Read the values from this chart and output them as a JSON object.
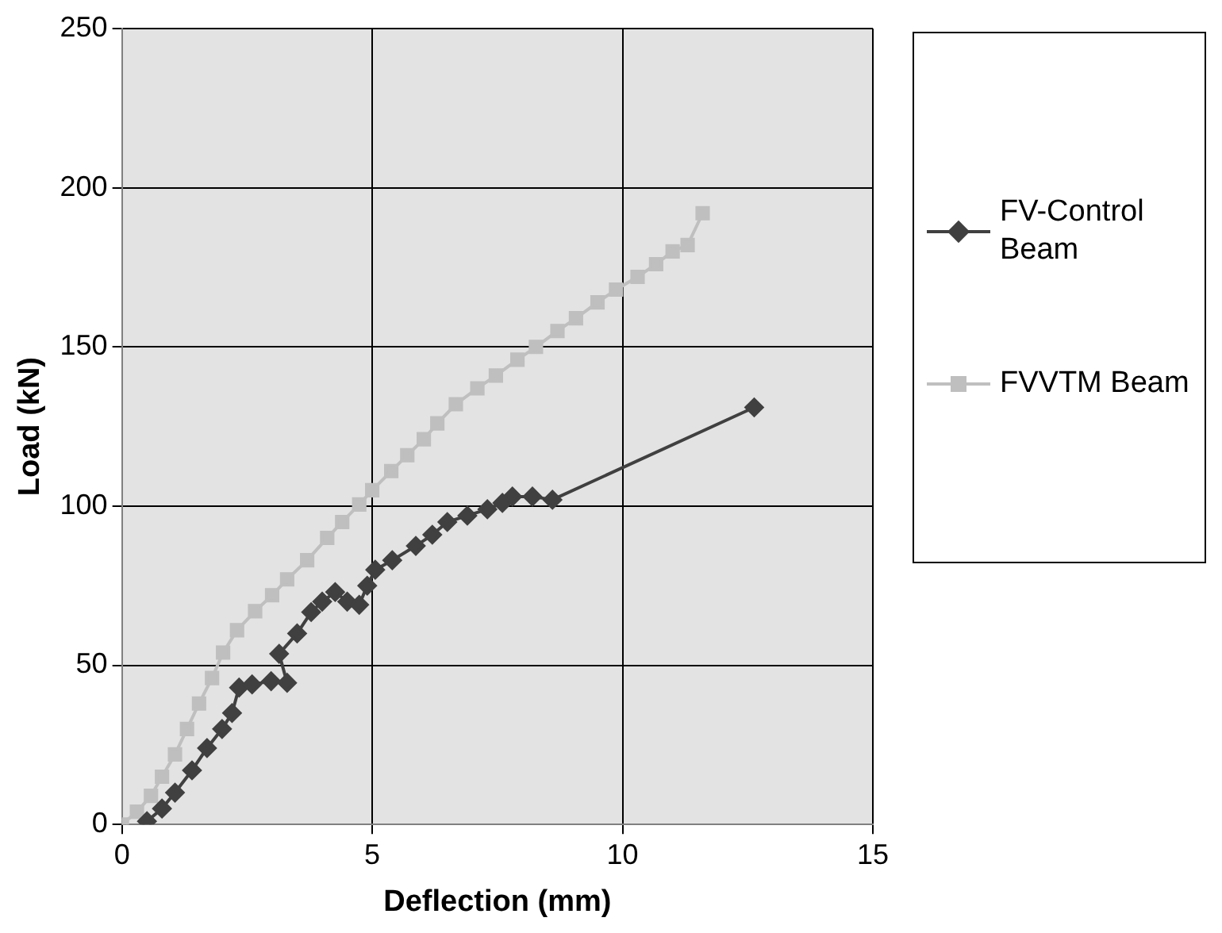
{
  "chart_data": {
    "type": "line",
    "xlabel": "Deflection (mm)",
    "ylabel": "Load (kN)",
    "xlim": [
      0,
      15
    ],
    "xticks": [
      0,
      5,
      10,
      15
    ],
    "ylim": [
      0,
      250
    ],
    "yticks": [
      0,
      50,
      100,
      150,
      200,
      250
    ],
    "grid": true,
    "legend": "right",
    "line_style": "solid",
    "series": [
      {
        "name": "FV-Control Beam",
        "color": "#404040",
        "marker": "diamond",
        "x": [
          0.5,
          0.8,
          1.06,
          1.4,
          1.7,
          2.0,
          2.2,
          2.34,
          2.6,
          2.98,
          3.3,
          3.14,
          3.5,
          3.78,
          4.0,
          4.26,
          4.5,
          4.74,
          4.9,
          5.06,
          5.4,
          5.87,
          6.2,
          6.5,
          6.9,
          7.3,
          7.6,
          7.8,
          8.2,
          8.6,
          12.63
        ],
        "values": [
          1,
          5,
          10,
          17,
          24,
          30,
          35,
          43,
          44,
          45,
          44.5,
          53.6,
          60,
          66.7,
          70,
          73,
          70,
          69,
          75,
          80,
          83,
          87.5,
          91,
          95,
          97,
          99,
          101,
          103,
          103,
          102,
          131
        ]
      },
      {
        "name": "FVVTM Beam",
        "color": "#bfbfbf",
        "marker": "square",
        "x": [
          0,
          0.3,
          0.58,
          0.8,
          1.06,
          1.3,
          1.54,
          1.8,
          2.02,
          2.3,
          2.66,
          3.0,
          3.3,
          3.7,
          4.1,
          4.4,
          4.74,
          5.0,
          5.38,
          5.7,
          6.03,
          6.3,
          6.67,
          7.1,
          7.47,
          7.9,
          8.27,
          8.7,
          9.07,
          9.5,
          9.87,
          10.3,
          10.67,
          11.0,
          11.3,
          11.6
        ],
        "values": [
          0,
          4,
          9,
          15,
          22,
          30,
          38,
          46,
          54,
          61,
          67,
          72,
          77,
          83,
          90,
          95,
          100.5,
          105,
          111,
          116,
          121,
          126,
          132,
          137,
          141,
          146,
          150,
          155,
          159,
          164,
          168,
          172,
          176,
          180,
          182,
          192
        ]
      }
    ]
  }
}
